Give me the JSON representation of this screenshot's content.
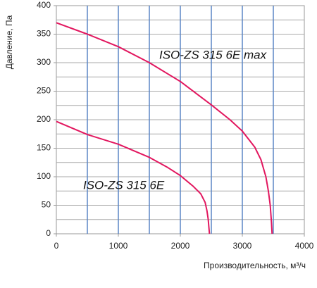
{
  "chart_data": {
    "type": "line",
    "ylabel": "Давление, Па",
    "xlabel": "Производительность, м³/ч",
    "xlim": [
      0,
      4000
    ],
    "xticks": [
      0,
      1000,
      2000,
      3000,
      4000
    ],
    "ylim": [
      0,
      400
    ],
    "yticks": [
      0,
      50,
      100,
      150,
      200,
      250,
      300,
      350,
      400
    ],
    "xgrid": [
      500,
      1000,
      1500,
      2000,
      2500,
      3000,
      3500
    ],
    "ygrid": [
      25,
      50,
      75,
      100,
      125,
      150,
      175,
      200,
      225,
      250,
      275,
      300,
      325,
      350,
      375
    ],
    "series": [
      {
        "name": "ISO-ZS 315 6E max",
        "color": "#e2175f",
        "x": [
          0,
          500,
          1000,
          1500,
          2000,
          2500,
          2800,
          3000,
          3200,
          3300,
          3380,
          3420,
          3450,
          3470,
          3480
        ],
        "values": [
          370,
          350,
          328,
          300,
          267,
          226,
          200,
          180,
          152,
          130,
          100,
          75,
          50,
          20,
          0
        ]
      },
      {
        "name": "ISO-ZS 315 6E",
        "color": "#e2175f",
        "x": [
          0,
          500,
          1000,
          1500,
          1800,
          2000,
          2200,
          2330,
          2400,
          2430,
          2450,
          2460,
          2470
        ],
        "values": [
          197,
          174,
          157,
          134,
          116,
          102,
          84,
          70,
          55,
          40,
          25,
          12,
          0
        ]
      }
    ]
  }
}
